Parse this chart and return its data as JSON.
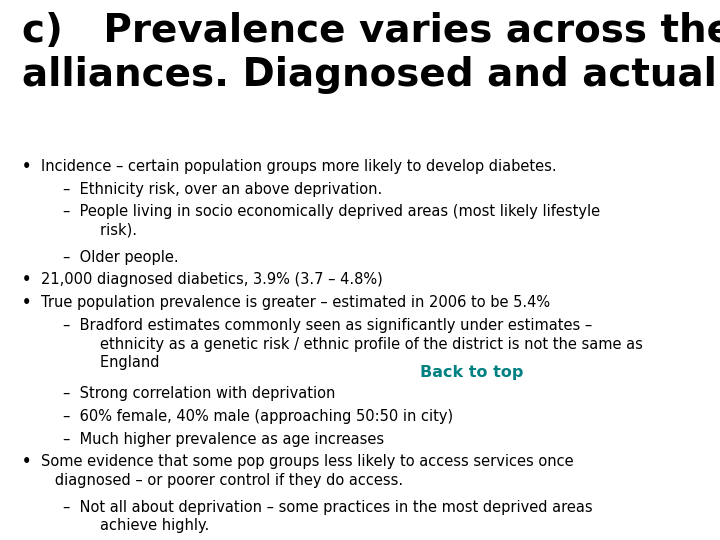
{
  "title_line1": "c)   Prevalence varies across the",
  "title_line2": "alliances. Diagnosed and actual",
  "background_color": "#ffffff",
  "title_color": "#000000",
  "title_fontsize": 28,
  "body_fontsize": 10.5,
  "bullet_color": "#000000",
  "link_color": "#008080",
  "link_text": "Back to top",
  "bullets": [
    {
      "level": 1,
      "text": "Incidence – certain population groups more likely to develop diabetes."
    },
    {
      "level": 2,
      "text": "–  Ethnicity risk, over an above deprivation."
    },
    {
      "level": 2,
      "text": "–  People living in socio economically deprived areas (most likely lifestyle\n        risk)."
    },
    {
      "level": 2,
      "text": "–  Older people."
    },
    {
      "level": 1,
      "text": "21,000 diagnosed diabetics, 3.9% (3.7 – 4.8%)"
    },
    {
      "level": 1,
      "text": "True population prevalence is greater – estimated in 2006 to be 5.4%"
    },
    {
      "level": 2,
      "text": "–  Bradford estimates commonly seen as significantly under estimates –\n        ethnicity as a genetic risk / ethnic profile of the district is not the same as\n        England"
    },
    {
      "level": 2,
      "text": "–  Strong correlation with deprivation"
    },
    {
      "level": 2,
      "text": "–  60% female, 40% male (approaching 50:50 in city)"
    },
    {
      "level": 2,
      "text": "–  Much higher prevalence as age increases"
    },
    {
      "level": 1,
      "text": "Some evidence that some pop groups less likely to access services once\n   diagnosed – or poorer control if they do access."
    },
    {
      "level": 2,
      "text": "–  Not all about deprivation – some practices in the most deprived areas\n        achieve highly."
    }
  ]
}
